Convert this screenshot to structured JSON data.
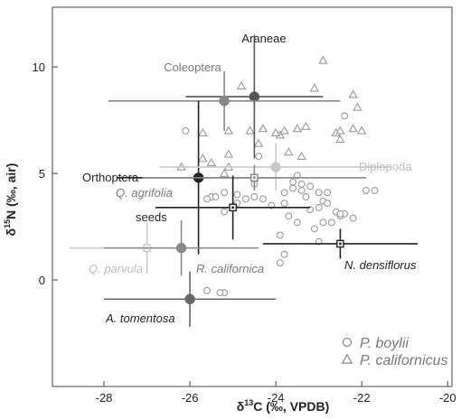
{
  "chart_data": {
    "type": "scatter",
    "xlabel": "δ13C (‰, VPDB)",
    "ylabel": "δ15N (‰, air)",
    "xlim": [
      -29.2,
      -19.9
    ],
    "ylim": [
      -5.0,
      12.8
    ],
    "x_ticks": [
      -28,
      -26,
      -24,
      -22,
      -20
    ],
    "y_ticks": [
      0,
      5,
      10
    ],
    "grid": false,
    "legend_position": "bottom-right",
    "legend": [
      {
        "name": "P. boylii",
        "marker": "circle"
      },
      {
        "name": "P. californicus",
        "marker": "triangle"
      }
    ],
    "series": [
      {
        "name": "P. boylii",
        "marker": "circle",
        "color": "#999999",
        "points": [
          [
            -26.1,
            7.0
          ],
          [
            -25.2,
            4.1
          ],
          [
            -24.9,
            3.6
          ],
          [
            -25.5,
            3.9
          ],
          [
            -25.4,
            3.9
          ],
          [
            -24.9,
            4.0
          ],
          [
            -24.5,
            3.9
          ],
          [
            -24.3,
            3.8
          ],
          [
            -23.8,
            4.1
          ],
          [
            -23.6,
            4.3
          ],
          [
            -23.4,
            4.2
          ],
          [
            -23.6,
            4.6
          ],
          [
            -23.5,
            4.9
          ],
          [
            -23.4,
            4.5
          ],
          [
            -23.2,
            4.4
          ],
          [
            -23.0,
            4.1
          ],
          [
            -22.9,
            3.7
          ],
          [
            -22.6,
            3.2
          ],
          [
            -22.4,
            3.1
          ],
          [
            -22.5,
            3.0
          ],
          [
            -22.2,
            2.9
          ],
          [
            -23.7,
            3.0
          ],
          [
            -23.5,
            2.7
          ],
          [
            -23.9,
            2.1
          ],
          [
            -23.1,
            2.4
          ],
          [
            -22.9,
            2.7
          ],
          [
            -22.7,
            2.7
          ],
          [
            -23.8,
            3.6
          ],
          [
            -23.2,
            3.3
          ],
          [
            -23.0,
            3.4
          ],
          [
            -22.8,
            3.6
          ],
          [
            -23.3,
            3.9
          ],
          [
            -22.8,
            4.1
          ],
          [
            -21.9,
            4.2
          ],
          [
            -22.4,
            7.7
          ],
          [
            -23.8,
            1.2
          ],
          [
            -23.9,
            0.8
          ],
          [
            -23.0,
            1.8
          ],
          [
            -25.2,
            -0.6
          ],
          [
            -24.7,
            3.8
          ],
          [
            -24.4,
            5.8
          ],
          [
            -25.6,
            3.8
          ],
          [
            -24.1,
            3.5
          ],
          [
            -25.2,
            3.2
          ],
          [
            -24.5,
            4.5
          ],
          [
            -22.5,
            3.1
          ],
          [
            -21.7,
            4.2
          ],
          [
            -25.6,
            -0.5
          ],
          [
            -25.3,
            -0.6
          ]
        ]
      },
      {
        "name": "P. californicus",
        "marker": "triangle",
        "color": "#999999",
        "points": [
          [
            -25.7,
            6.9
          ],
          [
            -25.1,
            7.0
          ],
          [
            -24.8,
            9.1
          ],
          [
            -24.6,
            7.0
          ],
          [
            -24.3,
            7.1
          ],
          [
            -23.9,
            6.8
          ],
          [
            -23.5,
            7.1
          ],
          [
            -23.3,
            7.2
          ],
          [
            -23.1,
            9.0
          ],
          [
            -22.9,
            10.3
          ],
          [
            -22.2,
            7.1
          ],
          [
            -22.6,
            6.9
          ],
          [
            -22.5,
            7.0
          ],
          [
            -22.2,
            8.7
          ],
          [
            -22.1,
            8.1
          ],
          [
            -24.4,
            6.4
          ],
          [
            -23.7,
            6.0
          ],
          [
            -23.4,
            5.8
          ],
          [
            -24.0,
            6.9
          ],
          [
            -25.1,
            5.3
          ],
          [
            -25.2,
            5.0
          ],
          [
            -25.5,
            5.5
          ],
          [
            -25.7,
            5.7
          ],
          [
            -25.1,
            5.9
          ],
          [
            -26.2,
            5.3
          ],
          [
            -23.8,
            7.0
          ],
          [
            -22.5,
            6.6
          ],
          [
            -22.0,
            7.0
          ]
        ]
      }
    ],
    "sources": [
      {
        "label": "Araneae",
        "x": -24.5,
        "y": 8.6,
        "xerr": 1.6,
        "yerr": 2.9,
        "marker": "circle",
        "color": "#555555",
        "label_italic": false
      },
      {
        "label": "Coleoptera",
        "x": -25.2,
        "y": 8.4,
        "xerr": 2.7,
        "yerr": 1.4,
        "marker": "circle",
        "color": "#888888",
        "label_italic": false
      },
      {
        "label": "Orthoptera",
        "x": -25.8,
        "y": 4.8,
        "xerr": 1.9,
        "yerr": 3.6,
        "marker": "circle",
        "color": "#222222",
        "label_italic": false
      },
      {
        "label": "Diplopoda",
        "x": -24.0,
        "y": 5.3,
        "xerr": 2.7,
        "yerr": 1.1,
        "marker": "circle",
        "color": "#c8c8c8",
        "label_italic": false
      },
      {
        "label": "Q. agrifolia",
        "x": -24.5,
        "y": 4.8,
        "xerr": 2.6,
        "yerr": 0.6,
        "marker": "square-dot",
        "color": "#888888",
        "label_italic": true
      },
      {
        "label": "seeds",
        "x": -25.0,
        "y": 3.4,
        "xerr": 1.8,
        "yerr": 1.5,
        "marker": "square-dot",
        "color": "#222222",
        "label_italic": false
      },
      {
        "label": "N. densiflorus",
        "x": -22.5,
        "y": 1.7,
        "xerr": 1.8,
        "yerr": 0.7,
        "marker": "square-dot",
        "color": "#222222",
        "label_italic": true
      },
      {
        "label": "Q. parvula",
        "x": -27.0,
        "y": 1.5,
        "xerr": 1.8,
        "yerr": 1.2,
        "marker": "square-dot",
        "color": "#c8c8c8",
        "label_italic": true
      },
      {
        "label": "R. californica",
        "x": -26.2,
        "y": 1.5,
        "xerr": 1.8,
        "yerr": 1.3,
        "marker": "circle",
        "color": "#888888",
        "label_italic": true
      },
      {
        "label": "A. tomentosa",
        "x": -26.0,
        "y": -0.9,
        "xerr": 2.0,
        "yerr": 1.3,
        "marker": "circle",
        "color": "#666666",
        "label_italic": true
      }
    ]
  }
}
